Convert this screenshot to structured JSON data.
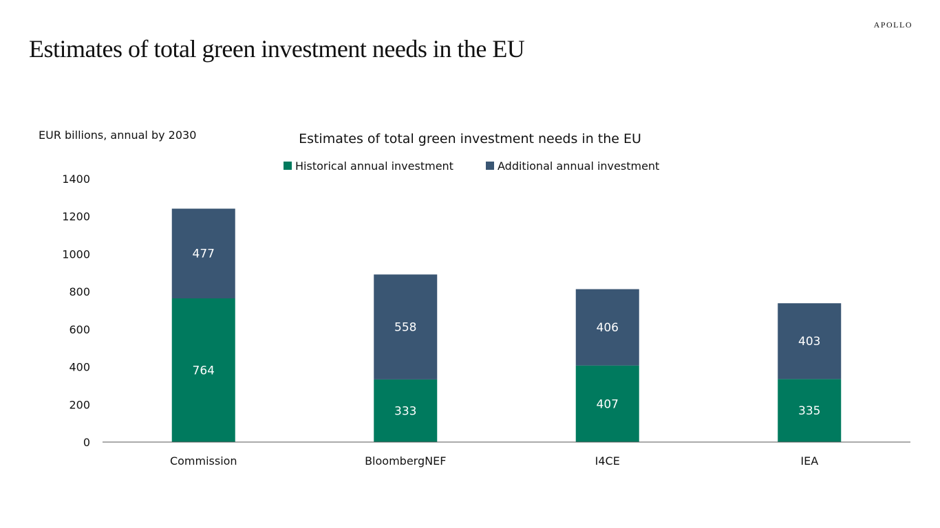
{
  "brand": "APOLLO",
  "slide_title": "Estimates of total green investment needs in the EU",
  "chart_data": {
    "type": "bar",
    "stacked": true,
    "title": "Estimates of total green investment needs in the EU",
    "ylabel": "EUR billions, annual by 2030",
    "xlabel": "",
    "categories": [
      "Commission",
      "BloombergNEF",
      "I4CE",
      "IEA"
    ],
    "series": [
      {
        "name": "Historical annual investment",
        "color": "#007A5E",
        "values": [
          764,
          333,
          407,
          335
        ]
      },
      {
        "name": "Additional annual investment",
        "color": "#3A5673",
        "values": [
          477,
          558,
          406,
          403
        ]
      }
    ],
    "ylim": [
      0,
      1400
    ],
    "yticks": [
      0,
      200,
      400,
      600,
      800,
      1000,
      1200,
      1400
    ],
    "grid": false,
    "legend": "top-center",
    "data_labels": true
  }
}
